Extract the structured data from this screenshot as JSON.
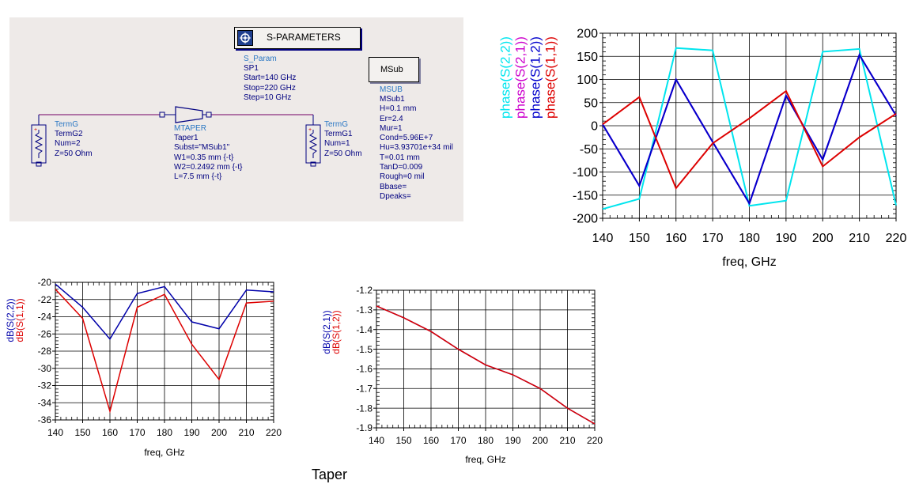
{
  "schematic": {
    "sparam_block": {
      "title": "S-PARAMETERS",
      "label_type": "S_Param",
      "lines": [
        "SP1",
        "Start=140 GHz",
        "Stop=220 GHz",
        "Step=10 GHz"
      ]
    },
    "msub_block": {
      "title": "MSub",
      "label_type": "MSUB",
      "lines": [
        "MSub1",
        "H=0.1 mm",
        "Er=2.4",
        "Mur=1",
        "Cond=5.96E+7",
        "Hu=3.93701e+34 mil",
        "T=0.01 mm",
        "TanD=0.009",
        "Rough=0 mil",
        "Bbase=",
        "Dpeaks="
      ]
    },
    "term_left": {
      "label_type": "TermG",
      "lines": [
        "TermG2",
        "Num=2",
        "Z=50 Ohm"
      ]
    },
    "term_right": {
      "label_type": "TermG",
      "lines": [
        "TermG1",
        "Num=1",
        "Z=50 Ohm"
      ]
    },
    "taper": {
      "label_type": "MTAPER",
      "lines": [
        "Taper1",
        "Subst=\"MSub1\"",
        "W1=0.35 mm {-t}",
        "W2=0.2492 mm {-t}",
        "L=7.5 mm {-t}"
      ]
    },
    "colors": {
      "wire": "#8b2e7e",
      "component": "#000080",
      "label": "#2b78c4"
    }
  },
  "caption": "Taper",
  "chart_data": [
    {
      "type": "line",
      "xlabel": "freq, GHz",
      "ylabel": "",
      "xlim": [
        140,
        220
      ],
      "ylim": [
        -200,
        200
      ],
      "xticks": [
        140,
        150,
        160,
        170,
        180,
        190,
        200,
        210,
        220
      ],
      "yticks": [
        -200,
        -150,
        -100,
        -50,
        0,
        50,
        100,
        150,
        200
      ],
      "grid": true,
      "x": [
        140,
        150,
        160,
        170,
        180,
        190,
        200,
        210,
        220
      ],
      "series": [
        {
          "name": "phase(S(2,2))",
          "color": "#00e5ee",
          "values": [
            -180,
            -158,
            168,
            163,
            -173,
            -162,
            160,
            166,
            -172
          ]
        },
        {
          "name": "phase(S(2,1))",
          "color": "#cc00cc",
          "values": [
            3,
            -130,
            100,
            -35,
            -168,
            65,
            -73,
            153,
            22
          ]
        },
        {
          "name": "phase(S(1,2))",
          "color": "#0000cc",
          "values": [
            3,
            -130,
            100,
            -35,
            -168,
            65,
            -73,
            153,
            22
          ]
        },
        {
          "name": "phase(S(1,1))",
          "color": "#dd0000",
          "values": [
            3,
            62,
            -135,
            -38,
            16,
            75,
            -88,
            -25,
            26
          ]
        }
      ]
    },
    {
      "type": "line",
      "xlabel": "freq, GHz",
      "ylabel": "",
      "xlim": [
        140,
        220
      ],
      "ylim": [
        -36,
        -20
      ],
      "xticks": [
        140,
        150,
        160,
        170,
        180,
        190,
        200,
        210,
        220
      ],
      "yticks": [
        -36,
        -34,
        -32,
        -30,
        -28,
        -26,
        -24,
        -22,
        -20
      ],
      "grid": true,
      "x": [
        140,
        150,
        160,
        170,
        180,
        190,
        200,
        210,
        220
      ],
      "series": [
        {
          "name": "dB(S(2,2))",
          "color": "#0000aa",
          "values": [
            -20.2,
            -22.9,
            -26.6,
            -21.3,
            -20.5,
            -24.6,
            -25.4,
            -20.9,
            -21.1
          ]
        },
        {
          "name": "dB(S(1,1))",
          "color": "#dd0000",
          "values": [
            -20.8,
            -24.2,
            -35.0,
            -22.9,
            -21.4,
            -27.2,
            -31.3,
            -22.4,
            -22.2
          ]
        }
      ]
    },
    {
      "type": "line",
      "xlabel": "freq, GHz",
      "ylabel": "",
      "xlim": [
        140,
        220
      ],
      "ylim": [
        -1.9,
        -1.2
      ],
      "xticks": [
        140,
        150,
        160,
        170,
        180,
        190,
        200,
        210,
        220
      ],
      "yticks": [
        -1.9,
        -1.8,
        -1.7,
        -1.6,
        -1.5,
        -1.4,
        -1.3,
        -1.2
      ],
      "grid": true,
      "x": [
        140,
        150,
        160,
        170,
        180,
        190,
        200,
        210,
        220
      ],
      "series": [
        {
          "name": "dB(S(2,1))",
          "color": "#0000aa",
          "values": [
            -1.28,
            -1.34,
            -1.41,
            -1.5,
            -1.58,
            -1.63,
            -1.7,
            -1.8,
            -1.88
          ]
        },
        {
          "name": "dB(S(1,2))",
          "color": "#dd0000",
          "values": [
            -1.28,
            -1.34,
            -1.41,
            -1.5,
            -1.58,
            -1.63,
            -1.7,
            -1.8,
            -1.88
          ]
        }
      ]
    }
  ]
}
